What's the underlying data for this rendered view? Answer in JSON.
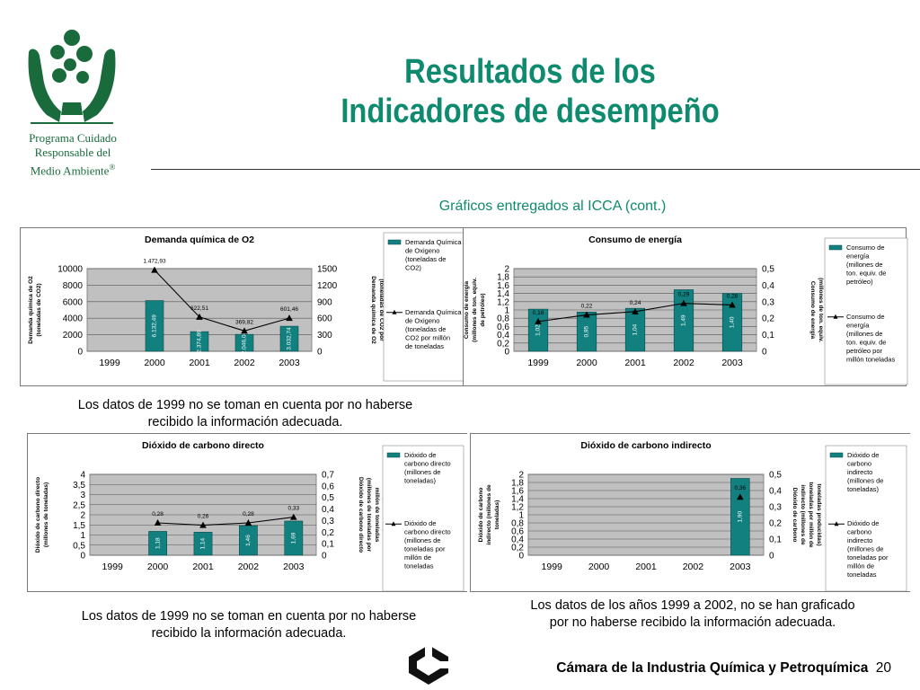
{
  "org": {
    "line1": "Programa Cuidado",
    "line2": "Responsable del",
    "line3": "Medio Ambiente",
    "reg": "®"
  },
  "title": {
    "line1": "Resultados de los",
    "line2": "Indicadores de desempeño"
  },
  "subtitle": "Gráficos entregados al ICCA (cont.)",
  "notes": {
    "note1a": "Los datos de 1999 no se toman en cuenta por no haberse",
    "note1b": "recibido la información adecuada.",
    "note2a": "Los datos de 1999 no se toman en cuenta por no haberse",
    "note2b": "recibido la información adecuada.",
    "note3a": "Los datos de los años 1999 a 2002, no se han graficado",
    "note3b": "por no haberse recibido la información adecuada."
  },
  "footer": {
    "text": "Cámara de la Industria Química y Petroquímica",
    "page": "20"
  },
  "colors": {
    "bar": "#138080",
    "plot_bg": "#c0c0c0",
    "title": "#0e8a6e",
    "logo": "#1a6b3c"
  },
  "chart_data": [
    {
      "type": "bar",
      "title": "Demanda química de O2",
      "categories": [
        "1999",
        "2000",
        "2001",
        "2002",
        "2003"
      ],
      "ylabel": "Demanda química de O2 (toneladas de CO2)",
      "y2label": "Demanda química de O2 (toneladas de CO2 por millón de toneladas producidas)",
      "yticks": [
        "0",
        "2000",
        "4000",
        "6000",
        "8000",
        "10000"
      ],
      "y2ticks": [
        "0",
        "300",
        "600",
        "900",
        "1200",
        "1500"
      ],
      "ylim": [
        0,
        10000
      ],
      "y2lim": [
        0,
        1500
      ],
      "series": [
        {
          "name": "Demanda Química de Oxigeno (toneladas de CO2)",
          "kind": "bar",
          "values": [
            null,
            6132.49,
            2374.89,
            2046.04,
            3032.74
          ],
          "labels": [
            "",
            "6.132,49",
            "2.374,89",
            "2.046,04",
            "3.032,74"
          ]
        },
        {
          "name": "Demanda Química de Oxigeno (toneladas de CO2 por millón de toneladas",
          "kind": "line",
          "values": [
            null,
            1472.93,
            622.51,
            369.82,
            601.46
          ],
          "labels": [
            "",
            "1.472,93",
            "622,51",
            "369,82",
            "601,46"
          ]
        }
      ]
    },
    {
      "type": "bar",
      "title": "Consumo de energía",
      "categories": [
        "1999",
        "2000",
        "2001",
        "2002",
        "2003"
      ],
      "ylabel": "Consumo de energía (millones de ton. equiv. de petróleo)",
      "y2label": "Consumo de energía (millones de ton. equiv. de petróleo por millón de toneladas producidas)",
      "yticks": [
        "0",
        "0,2",
        "0,4",
        "0,6",
        "0,8",
        "1",
        "1,2",
        "1,4",
        "1,6",
        "1,8",
        "2"
      ],
      "y2ticks": [
        "0",
        "0,1",
        "0,2",
        "0,3",
        "0,4",
        "0,5"
      ],
      "ylim": [
        0,
        2
      ],
      "y2lim": [
        0,
        0.5
      ],
      "series": [
        {
          "name": "Consumo de energía (millones de ton. equiv. de petróleo)",
          "kind": "bar",
          "values": [
            1.02,
            0.95,
            1.04,
            1.49,
            1.4
          ],
          "labels": [
            "1,02",
            "0,95",
            "1,04",
            "1,49",
            "1,40"
          ]
        },
        {
          "name": "Consumo de energía (millones de ton. equiv. de petróleo por millón toneladas",
          "kind": "line",
          "values": [
            0.18,
            0.22,
            0.24,
            0.29,
            0.28
          ],
          "labels": [
            "0,18",
            "0,22",
            "0,24",
            "0,29",
            "0,28"
          ]
        }
      ]
    },
    {
      "type": "bar",
      "title": "Dióxido de carbono directo",
      "categories": [
        "1999",
        "2000",
        "2001",
        "2002",
        "2003"
      ],
      "ylabel": "Dióxido de carbono directo (millones de toneladas)",
      "y2label": "Dióxido de carbono directo (millones de toneladas por millón de toneladas producidas)",
      "yticks": [
        "0",
        "0,5",
        "1",
        "1,5",
        "2",
        "2,5",
        "3",
        "3,5",
        "4"
      ],
      "y2ticks": [
        "0",
        "0,1",
        "0,2",
        "0,3",
        "0,4",
        "0,5",
        "0,6",
        "0,7"
      ],
      "ylim": [
        0,
        4
      ],
      "y2lim": [
        0,
        0.7
      ],
      "series": [
        {
          "name": "Dióxido de carbono directo (millones de toneladas)",
          "kind": "bar",
          "values": [
            null,
            1.18,
            1.14,
            1.46,
            1.69
          ],
          "labels": [
            "",
            "1,18",
            "1,14",
            "1,46",
            "1,69"
          ]
        },
        {
          "name": "Dióxido de carbono directo (millones de toneladas por millón de toneladas",
          "kind": "line",
          "values": [
            null,
            0.28,
            0.26,
            0.28,
            0.33
          ],
          "labels": [
            "",
            "0,28",
            "0,26",
            "0,28",
            "0,33"
          ]
        }
      ]
    },
    {
      "type": "bar",
      "title": "Dióxido de carbono indirecto",
      "categories": [
        "1999",
        "2000",
        "2001",
        "2002",
        "2003"
      ],
      "ylabel": "Dióxido de carbono indirecto (millones de toneladas)",
      "y2label": "Dióxido de carbono indirecto (millones de toneladas por millón de toneladas producidas)",
      "yticks": [
        "0",
        "0,2",
        "0,4",
        "0,6",
        "0,8",
        "1",
        "1,2",
        "1,4",
        "1,6",
        "1,8",
        "2"
      ],
      "y2ticks": [
        "0",
        "0,1",
        "0,2",
        "0,3",
        "0,4",
        "0,5"
      ],
      "ylim": [
        0,
        2
      ],
      "y2lim": [
        0,
        0.5
      ],
      "series": [
        {
          "name": "Dióxido de carbono indirecto (millones de toneladas)",
          "kind": "bar",
          "values": [
            null,
            null,
            null,
            null,
            1.9
          ],
          "labels": [
            "",
            "",
            "",
            "",
            "1,90"
          ]
        },
        {
          "name": "Dióxido de carbono indirecto (millones de toneladas por millón de toneladas",
          "kind": "line",
          "values": [
            null,
            null,
            null,
            null,
            0.36
          ],
          "labels": [
            "",
            "",
            "",
            "",
            "0,36"
          ]
        }
      ]
    }
  ]
}
